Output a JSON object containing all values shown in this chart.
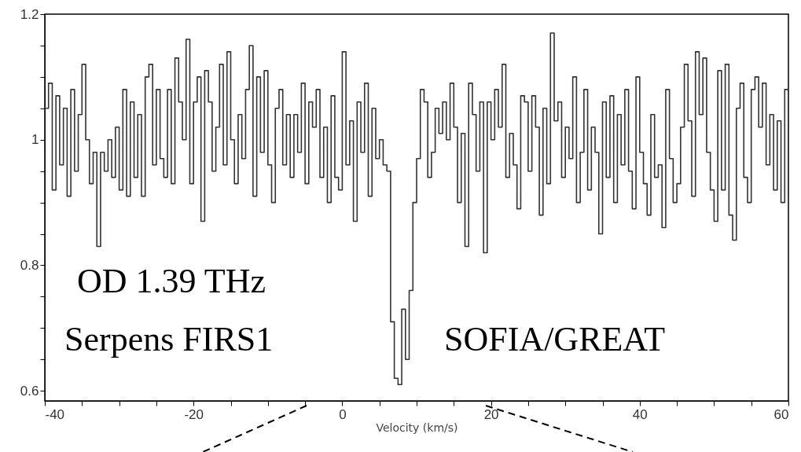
{
  "chart_data": {
    "type": "step",
    "xlabel": "Velocity (km/s)",
    "annotations": [
      "OD 1.39 THz",
      "Serpens FIRS1",
      "SOFIA/GREAT"
    ],
    "xlim": [
      -40,
      60
    ],
    "ylim": [
      0.584,
      1.2
    ],
    "xticks": [
      -40,
      {
        "value": -35,
        "label": null
      },
      -20,
      {
        "value": -30,
        "label": null
      },
      {
        "value": -25,
        "label": null
      },
      {
        "value": -15,
        "label": null
      },
      {
        "value": -10,
        "label": null
      },
      {
        "value": -5,
        "label": null
      },
      0,
      {
        "value": 5,
        "label": null
      },
      {
        "value": 10,
        "label": null
      },
      {
        "value": 15,
        "label": null
      },
      20,
      {
        "value": 25,
        "label": null
      },
      {
        "value": 30,
        "label": null
      },
      {
        "value": 35,
        "label": null
      },
      40,
      {
        "value": 45,
        "label": null
      },
      {
        "value": 50,
        "label": null
      },
      {
        "value": 55,
        "label": null
      },
      60
    ],
    "yticks": [
      0.6,
      {
        "value": 0.65,
        "label": null
      },
      {
        "value": 0.7,
        "label": null
      },
      {
        "value": 0.75,
        "label": null
      },
      0.8,
      {
        "value": 0.85,
        "label": null
      },
      {
        "value": 0.9,
        "label": null
      },
      {
        "value": 0.95,
        "label": null
      },
      1,
      {
        "value": 1.05,
        "label": null
      },
      {
        "value": 1.1,
        "label": null
      },
      {
        "value": 1.15,
        "label": null
      },
      1.2
    ],
    "grid": false,
    "marker": "none",
    "line_style": "solid",
    "series": [
      {
        "color": "#333333",
        "x": [
          -40,
          -39.5,
          -39,
          -38.5,
          -38,
          -37.5,
          -37,
          -36.5,
          -36,
          -35.5,
          -35,
          -34.5,
          -34,
          -33.5,
          -33,
          -32.5,
          -32,
          -31.5,
          -31,
          -30.5,
          -30,
          -29.5,
          -29,
          -28.5,
          -28,
          -27.5,
          -27,
          -26.5,
          -26,
          -25.5,
          -25,
          -24.5,
          -24,
          -23.5,
          -23,
          -22.5,
          -22,
          -21.5,
          -21,
          -20.5,
          -20,
          -19.5,
          -19,
          -18.5,
          -18,
          -17.5,
          -17,
          -16.5,
          -16,
          -15.5,
          -15,
          -14.5,
          -14,
          -13.5,
          -13,
          -12.5,
          -12,
          -11.5,
          -11,
          -10.5,
          -10,
          -9.5,
          -9,
          -8.5,
          -8,
          -7.5,
          -7,
          -6.5,
          -6,
          -5.5,
          -5,
          -4.5,
          -4,
          -3.5,
          -3,
          -2.5,
          -2,
          -1.5,
          -1,
          -0.5,
          0,
          0.5,
          1,
          1.5,
          2,
          2.5,
          3,
          3.5,
          4,
          4.5,
          5,
          5.5,
          6,
          6.5,
          7,
          7.5,
          8,
          8.5,
          9,
          9.5,
          10,
          10.5,
          11,
          11.5,
          12,
          12.5,
          13,
          13.5,
          14,
          14.5,
          15,
          15.5,
          16,
          16.5,
          17,
          17.5,
          18,
          18.5,
          19,
          19.5,
          20,
          20.5,
          21,
          21.5,
          22,
          22.5,
          23,
          23.5,
          24,
          24.5,
          25,
          25.5,
          26,
          26.5,
          27,
          27.5,
          28,
          28.5,
          29,
          29.5,
          30,
          30.5,
          31,
          31.5,
          32,
          32.5,
          33,
          33.5,
          34,
          34.5,
          35,
          35.5,
          36,
          36.5,
          37,
          37.5,
          38,
          38.5,
          39,
          39.5,
          40,
          40.5,
          41,
          41.5,
          42,
          42.5,
          43,
          43.5,
          44,
          44.5,
          45,
          45.5,
          46,
          46.5,
          47,
          47.5,
          48,
          48.5,
          49,
          49.5,
          50,
          50.5,
          51,
          51.5,
          52,
          52.5,
          53,
          53.5,
          54,
          54.5,
          55,
          55.5,
          56,
          56.5,
          57,
          57.5,
          58,
          58.5,
          59,
          59.5,
          60
        ],
        "values": [
          1.05,
          1.09,
          0.92,
          1.07,
          0.96,
          1.05,
          0.91,
          1.08,
          0.95,
          1.04,
          1.12,
          1.0,
          0.93,
          0.98,
          0.83,
          0.98,
          0.95,
          1.0,
          0.94,
          1.02,
          0.92,
          1.08,
          0.91,
          1.06,
          0.94,
          1.04,
          0.91,
          1.1,
          1.12,
          0.96,
          1.08,
          0.97,
          0.94,
          1.08,
          0.93,
          1.13,
          1.06,
          1.0,
          1.16,
          0.93,
          1.06,
          1.1,
          0.87,
          1.11,
          1.06,
          0.95,
          1.02,
          1.12,
          0.96,
          1.14,
          1.0,
          0.93,
          1.04,
          0.97,
          1.08,
          1.15,
          0.91,
          1.1,
          0.98,
          1.11,
          0.96,
          0.9,
          1.05,
          1.08,
          0.96,
          1.04,
          0.94,
          1.04,
          0.98,
          1.09,
          0.93,
          1.06,
          1.02,
          1.08,
          0.94,
          1.02,
          0.9,
          1.07,
          0.94,
          0.92,
          1.14,
          0.96,
          1.03,
          0.87,
          1.06,
          0.98,
          1.09,
          0.91,
          1.05,
          0.97,
          1.0,
          0.96,
          0.95,
          0.71,
          0.62,
          0.61,
          0.73,
          0.65,
          0.76,
          0.9,
          0.97,
          1.08,
          1.06,
          0.94,
          0.98,
          1.05,
          1.01,
          1.06,
          1.0,
          1.09,
          1.02,
          0.9,
          1.01,
          0.83,
          1.09,
          1.04,
          0.95,
          1.06,
          0.82,
          1.06,
          1.0,
          1.08,
          1.02,
          1.12,
          0.94,
          1.01,
          0.96,
          0.89,
          1.07,
          1.06,
          0.95,
          1.07,
          1.02,
          0.88,
          1.05,
          0.93,
          1.17,
          1.03,
          1.06,
          0.94,
          1.02,
          0.97,
          1.1,
          0.9,
          0.98,
          1.08,
          0.92,
          1.02,
          0.98,
          0.85,
          1.06,
          0.94,
          1.07,
          0.9,
          1.04,
          0.96,
          1.08,
          0.95,
          0.89,
          1.1,
          0.98,
          0.93,
          0.88,
          1.04,
          0.94,
          0.96,
          0.86,
          1.08,
          0.97,
          0.9,
          0.93,
          1.02,
          1.12,
          1.03,
          0.91,
          1.14,
          1.04,
          1.13,
          0.98,
          0.92,
          0.87,
          1.11,
          0.92,
          1.12,
          0.88,
          0.84,
          1.05,
          1.09,
          0.94,
          0.9,
          1.08,
          1.1,
          1.02,
          1.09,
          0.96,
          1.04,
          0.92,
          1.03,
          0.9,
          1.08,
          0.91
        ]
      }
    ]
  }
}
